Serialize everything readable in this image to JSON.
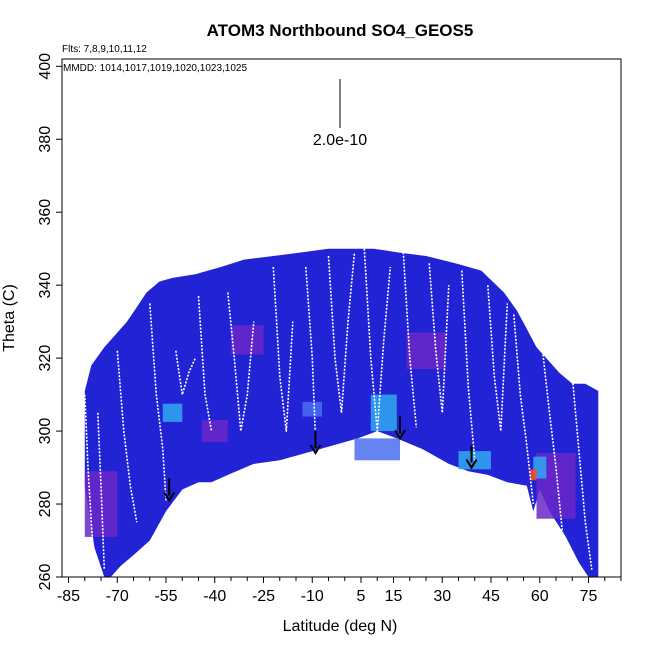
{
  "chart_data": {
    "type": "heatmap",
    "title": "ATOM3 Northbound SO4_GEOS5",
    "flights_note": "Flts: 7,8,9,10,11,12",
    "dates_note": "MMDD: 1014,1017,1019,1020,1023,1025",
    "xlabel": "Latitude (deg N)",
    "ylabel": "Theta (C)",
    "xlim": [
      -87,
      85
    ],
    "ylim": [
      260,
      402
    ],
    "x_ticks": [
      -85,
      -70,
      -55,
      -40,
      -25,
      -10,
      5,
      15,
      30,
      45,
      60,
      75
    ],
    "y_ticks": [
      260,
      280,
      300,
      320,
      340,
      360,
      380,
      400
    ],
    "scale_bar_label": "2.0e-10",
    "colors": {
      "background": "#2323d6",
      "low": "#6a28c8",
      "mid": "#4a6ff0",
      "high": "#31a8f0",
      "hot": "#ff4a1a",
      "track": "#ffffff",
      "arrow": "#000000"
    },
    "curtain_top": [
      [
        -80,
        311
      ],
      [
        -78,
        318
      ],
      [
        -74,
        323
      ],
      [
        -70,
        327
      ],
      [
        -67,
        330
      ],
      [
        -64,
        334
      ],
      [
        -61,
        338
      ],
      [
        -57,
        341
      ],
      [
        -53,
        342
      ],
      [
        -46,
        343
      ],
      [
        -38,
        345
      ],
      [
        -31,
        347
      ],
      [
        -22,
        348
      ],
      [
        -13,
        349
      ],
      [
        -5,
        350
      ],
      [
        2,
        350
      ],
      [
        9,
        350
      ],
      [
        16,
        349
      ],
      [
        25,
        348
      ],
      [
        34,
        346
      ],
      [
        42,
        344
      ],
      [
        49,
        338
      ],
      [
        53,
        333
      ],
      [
        56,
        328
      ],
      [
        59,
        323
      ],
      [
        62,
        320
      ],
      [
        66,
        316
      ],
      [
        70,
        313
      ],
      [
        74,
        313
      ],
      [
        78,
        311
      ]
    ],
    "curtain_bottom": [
      [
        -80,
        285
      ],
      [
        -77,
        268
      ],
      [
        -74,
        260
      ],
      [
        -72,
        260
      ],
      [
        -69,
        263
      ],
      [
        -65,
        266
      ],
      [
        -60,
        270
      ],
      [
        -55,
        278
      ],
      [
        -50,
        284
      ],
      [
        -45,
        286
      ],
      [
        -41,
        286
      ],
      [
        -36,
        288
      ],
      [
        -28,
        291
      ],
      [
        -20,
        292
      ],
      [
        -12,
        294
      ],
      [
        -4,
        296
      ],
      [
        4,
        298
      ],
      [
        10,
        300
      ],
      [
        16,
        298
      ],
      [
        24,
        295
      ],
      [
        32,
        291
      ],
      [
        38,
        289
      ],
      [
        44,
        288
      ],
      [
        50,
        286
      ],
      [
        56,
        285
      ],
      [
        58,
        278
      ],
      [
        60,
        284
      ],
      [
        63,
        278
      ],
      [
        68,
        271
      ],
      [
        72,
        264
      ],
      [
        75,
        260
      ],
      [
        78,
        260
      ],
      [
        78,
        268
      ]
    ],
    "patches": [
      {
        "lat": -53,
        "theta": 305,
        "w": 6,
        "h": 5,
        "level": "high"
      },
      {
        "lat": -10,
        "theta": 306,
        "w": 6,
        "h": 4,
        "level": "mid"
      },
      {
        "lat": 12,
        "theta": 305,
        "w": 8,
        "h": 10,
        "level": "high"
      },
      {
        "lat": 10,
        "theta": 295,
        "w": 14,
        "h": 6,
        "level": "mid"
      },
      {
        "lat": 40,
        "theta": 292,
        "w": 10,
        "h": 5,
        "level": "high"
      },
      {
        "lat": -40,
        "theta": 300,
        "w": 8,
        "h": 6,
        "level": "low"
      },
      {
        "lat": -75,
        "theta": 280,
        "w": 10,
        "h": 18,
        "level": "low"
      },
      {
        "lat": 65,
        "theta": 285,
        "w": 12,
        "h": 18,
        "level": "low"
      },
      {
        "lat": 60,
        "theta": 290,
        "w": 4,
        "h": 6,
        "level": "high"
      },
      {
        "lat": 58,
        "theta": 288,
        "w": 2,
        "h": 3,
        "level": "hot"
      },
      {
        "lat": 25,
        "theta": 322,
        "w": 12,
        "h": 10,
        "level": "low"
      },
      {
        "lat": -30,
        "theta": 325,
        "w": 10,
        "h": 8,
        "level": "low"
      }
    ],
    "track_segments": [
      [
        [
          -80,
          310
        ],
        [
          -79,
          290
        ],
        [
          -78,
          275
        ],
        [
          -77,
          262
        ]
      ],
      [
        [
          -76,
          305
        ],
        [
          -75,
          285
        ],
        [
          -74,
          262
        ]
      ],
      [
        [
          -70,
          322
        ],
        [
          -68,
          300
        ],
        [
          -66,
          285
        ],
        [
          -64,
          275
        ]
      ],
      [
        [
          -60,
          335
        ],
        [
          -58,
          310
        ],
        [
          -56,
          295
        ],
        [
          -55,
          281
        ]
      ],
      [
        [
          -52,
          322
        ],
        [
          -50,
          310
        ],
        [
          -48,
          316
        ],
        [
          -46,
          320
        ]
      ],
      [
        [
          -45,
          337
        ],
        [
          -43,
          310
        ],
        [
          -41,
          300
        ]
      ],
      [
        [
          -36,
          338
        ],
        [
          -34,
          320
        ],
        [
          -32,
          300
        ],
        [
          -30,
          310
        ],
        [
          -28,
          330
        ]
      ],
      [
        [
          -22,
          345
        ],
        [
          -20,
          315
        ],
        [
          -18,
          300
        ],
        [
          -16,
          330
        ]
      ],
      [
        [
          -12,
          345
        ],
        [
          -10,
          320
        ],
        [
          -9,
          298
        ]
      ],
      [
        [
          -5,
          348
        ],
        [
          -3,
          320
        ],
        [
          -1,
          305
        ],
        [
          1,
          330
        ],
        [
          3,
          349
        ]
      ],
      [
        [
          6,
          350
        ],
        [
          8,
          320
        ],
        [
          10,
          300
        ],
        [
          12,
          325
        ],
        [
          14,
          345
        ]
      ],
      [
        [
          18,
          349
        ],
        [
          20,
          320
        ],
        [
          22,
          301
        ]
      ],
      [
        [
          26,
          346
        ],
        [
          28,
          322
        ],
        [
          30,
          305
        ],
        [
          32,
          340
        ]
      ],
      [
        [
          36,
          344
        ],
        [
          38,
          312
        ],
        [
          40,
          292
        ]
      ],
      [
        [
          44,
          340
        ],
        [
          46,
          315
        ],
        [
          48,
          300
        ],
        [
          50,
          335
        ]
      ],
      [
        [
          52,
          332
        ],
        [
          54,
          310
        ],
        [
          56,
          296
        ],
        [
          58,
          280
        ]
      ],
      [
        [
          61,
          321
        ],
        [
          63,
          305
        ],
        [
          65,
          290
        ],
        [
          67,
          272
        ]
      ],
      [
        [
          70,
          315
        ],
        [
          72,
          295
        ],
        [
          74,
          275
        ],
        [
          76,
          262
        ]
      ]
    ],
    "arrows": [
      {
        "lat": -54,
        "theta_tip": 281
      },
      {
        "lat": -9,
        "theta_tip": 294
      },
      {
        "lat": 17,
        "theta_tip": 298
      },
      {
        "lat": 39,
        "theta_tip": 290
      }
    ]
  }
}
